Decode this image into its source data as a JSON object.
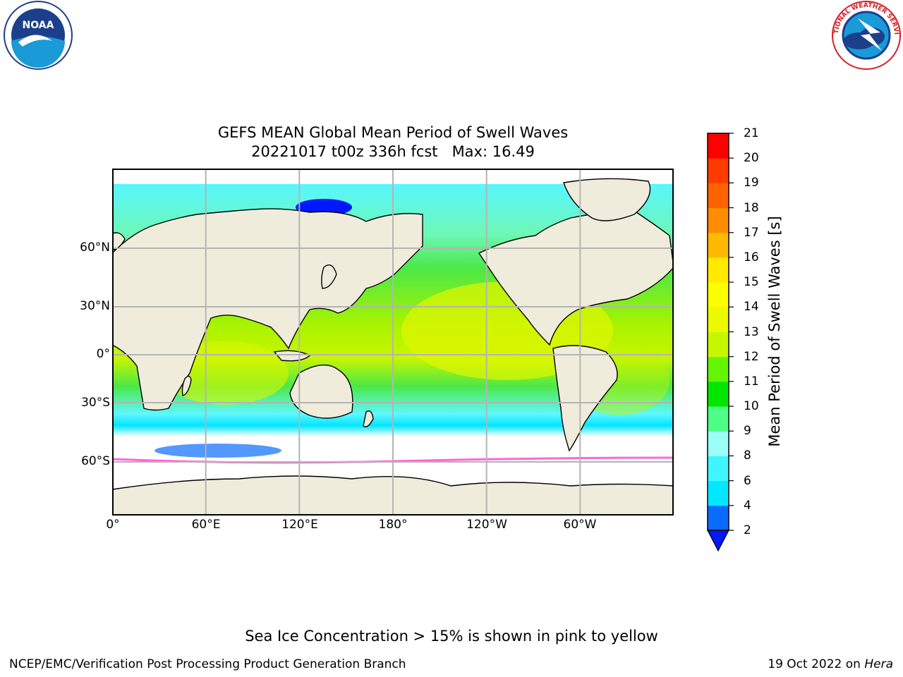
{
  "title": "GEFS MEAN Global Mean Period of Swell Waves",
  "subtitle": "20221017 t00z 336h fcst   Max: 16.49",
  "logos": {
    "left": "NOAA",
    "right": "NATIONAL WEATHER SERVICE"
  },
  "map": {
    "projection": "equirectangular",
    "lat_labels": [
      "60°N",
      "30°N",
      "0°",
      "30°S",
      "60°S"
    ],
    "lon_labels": [
      "0°",
      "60°E",
      "120°E",
      "180°",
      "120°W",
      "60°W"
    ],
    "land_color": "#efecdc",
    "grid_color": "#b4b4b4"
  },
  "colorbar": {
    "label": "Mean Period of Swell Waves [s]",
    "ticks": [
      "2",
      "4",
      "6",
      "8",
      "9",
      "10",
      "11",
      "12",
      "13",
      "14",
      "15",
      "16",
      "17",
      "18",
      "19",
      "20",
      "21"
    ],
    "colors": [
      "#0a6bff",
      "#00e8ff",
      "#3ff6ff",
      "#9bfff8",
      "#4dff85",
      "#00e600",
      "#66f500",
      "#c7f700",
      "#ecf900",
      "#fdff00",
      "#ffea00",
      "#ffba00",
      "#ff8c00",
      "#ff6300",
      "#ff3b00",
      "#ff0000"
    ],
    "under_color": "#0018ff",
    "max_value": 16.49
  },
  "note": "Sea Ice Concentration > 15% is shown in pink to yellow",
  "footer": {
    "left": "NCEP/EMC/Verification Post Processing Product Generation Branch",
    "date": "19 Oct 2022 on ",
    "machine": "Hera"
  }
}
